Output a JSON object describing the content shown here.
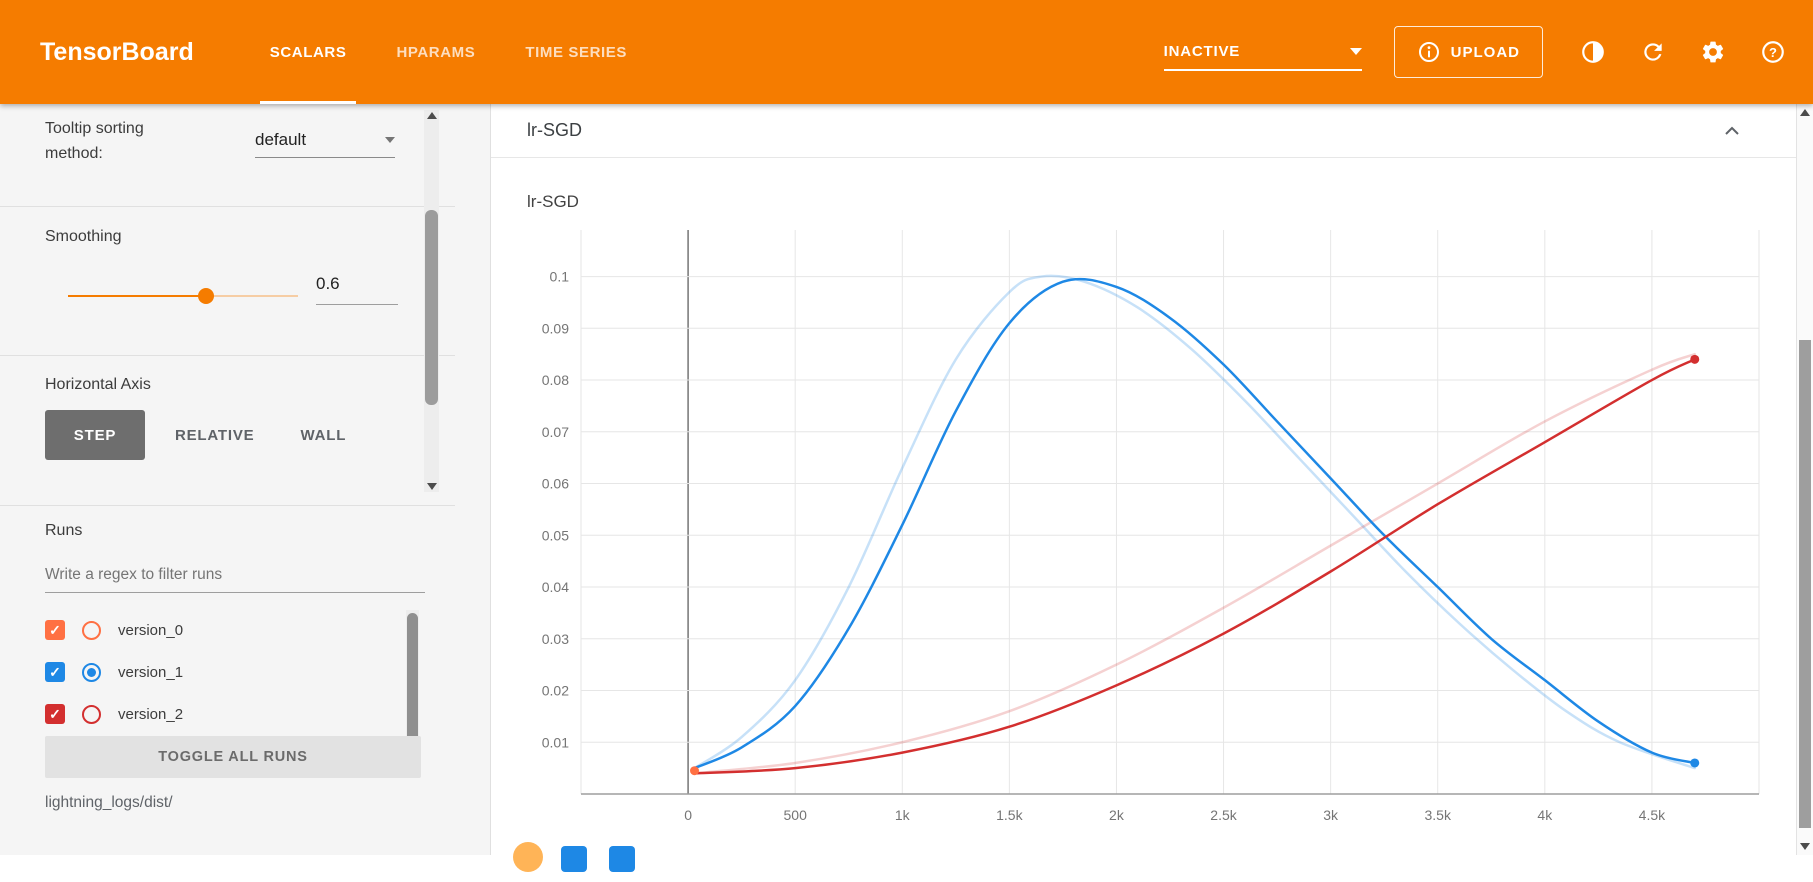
{
  "theme": {
    "header_bg": "#f57c00",
    "accent": "#f57c00",
    "step_active_bg": "#6e6e6e"
  },
  "header": {
    "logo": "TensorBoard",
    "tabs": [
      {
        "label": "SCALARS",
        "active": true
      },
      {
        "label": "HPARAMS",
        "active": false
      },
      {
        "label": "TIME SERIES",
        "active": false
      }
    ],
    "status_dropdown": {
      "value": "INACTIVE"
    },
    "upload_button": "UPLOAD",
    "icons": [
      "contrast-icon",
      "refresh-icon",
      "gear-icon",
      "help-icon"
    ]
  },
  "sidebar": {
    "tooltip_sorting_label": "Tooltip sorting method:",
    "tooltip_sorting_value": "default",
    "smoothing_label": "Smoothing",
    "smoothing_value": "0.6",
    "horizontal_axis_label": "Horizontal Axis",
    "axis_modes": [
      {
        "label": "STEP",
        "active": true
      },
      {
        "label": "RELATIVE",
        "active": false
      },
      {
        "label": "WALL",
        "active": false
      }
    ]
  },
  "runs": {
    "heading": "Runs",
    "filter_placeholder": "Write a regex to filter runs",
    "items": [
      {
        "label": "version_0",
        "color": "#ff7043",
        "checked": true,
        "selected": false
      },
      {
        "label": "version_1",
        "color": "#1e88e5",
        "checked": true,
        "selected": true
      },
      {
        "label": "version_2",
        "color": "#d32f2f",
        "checked": true,
        "selected": false
      }
    ],
    "toggle_all_label": "TOGGLE ALL RUNS",
    "logdir": "lightning_logs/dist/"
  },
  "main": {
    "section_title": "lr-SGD"
  },
  "chart_data": {
    "type": "line",
    "title": "lr-SGD",
    "xlim": [
      -500,
      5000
    ],
    "ylim": [
      0,
      0.109
    ],
    "x_ticks": [
      {
        "value": 0,
        "label": "0"
      },
      {
        "value": 500,
        "label": "500"
      },
      {
        "value": 1000,
        "label": "1k"
      },
      {
        "value": 1500,
        "label": "1.5k"
      },
      {
        "value": 2000,
        "label": "2k"
      },
      {
        "value": 2500,
        "label": "2.5k"
      },
      {
        "value": 3000,
        "label": "3k"
      },
      {
        "value": 3500,
        "label": "3.5k"
      },
      {
        "value": 4000,
        "label": "4k"
      },
      {
        "value": 4500,
        "label": "4.5k"
      }
    ],
    "y_ticks": [
      {
        "value": 0.01,
        "label": "0.01"
      },
      {
        "value": 0.02,
        "label": "0.02"
      },
      {
        "value": 0.03,
        "label": "0.03"
      },
      {
        "value": 0.04,
        "label": "0.04"
      },
      {
        "value": 0.05,
        "label": "0.05"
      },
      {
        "value": 0.06,
        "label": "0.06"
      },
      {
        "value": 0.07,
        "label": "0.07"
      },
      {
        "value": 0.08,
        "label": "0.08"
      },
      {
        "value": 0.09,
        "label": "0.09"
      },
      {
        "value": 0.1,
        "label": "0.1"
      }
    ],
    "series": [
      {
        "name": "version_1 (original)",
        "color": "#1e88e5",
        "opacity": 0.25,
        "width": 2.5,
        "end_dot": false,
        "points": [
          [
            30,
            0.005
          ],
          [
            250,
            0.011
          ],
          [
            500,
            0.022
          ],
          [
            750,
            0.04
          ],
          [
            1000,
            0.063
          ],
          [
            1250,
            0.084
          ],
          [
            1500,
            0.097
          ],
          [
            1650,
            0.1
          ],
          [
            1850,
            0.099
          ],
          [
            2100,
            0.094
          ],
          [
            2350,
            0.086
          ],
          [
            2600,
            0.076
          ],
          [
            2850,
            0.065
          ],
          [
            3100,
            0.054
          ],
          [
            3350,
            0.043
          ],
          [
            3600,
            0.033
          ],
          [
            3850,
            0.024
          ],
          [
            4100,
            0.016
          ],
          [
            4350,
            0.01
          ],
          [
            4700,
            0.005
          ]
        ]
      },
      {
        "name": "version_2 (original)",
        "color": "#d32f2f",
        "opacity": 0.22,
        "width": 2.5,
        "end_dot": false,
        "points": [
          [
            30,
            0.004
          ],
          [
            500,
            0.006
          ],
          [
            1000,
            0.01
          ],
          [
            1500,
            0.016
          ],
          [
            2000,
            0.025
          ],
          [
            2500,
            0.036
          ],
          [
            3000,
            0.048
          ],
          [
            3500,
            0.06
          ],
          [
            4000,
            0.072
          ],
          [
            4500,
            0.082
          ],
          [
            4700,
            0.085
          ]
        ]
      },
      {
        "name": "version_1 (smoothed)",
        "color": "#1e88e5",
        "opacity": 1,
        "width": 2.5,
        "end_dot": true,
        "points": [
          [
            30,
            0.005
          ],
          [
            250,
            0.009
          ],
          [
            500,
            0.017
          ],
          [
            750,
            0.032
          ],
          [
            1000,
            0.052
          ],
          [
            1250,
            0.074
          ],
          [
            1500,
            0.091
          ],
          [
            1750,
            0.099
          ],
          [
            2000,
            0.098
          ],
          [
            2250,
            0.092
          ],
          [
            2500,
            0.083
          ],
          [
            2750,
            0.072
          ],
          [
            3000,
            0.061
          ],
          [
            3250,
            0.05
          ],
          [
            3500,
            0.04
          ],
          [
            3750,
            0.03
          ],
          [
            4000,
            0.022
          ],
          [
            4250,
            0.014
          ],
          [
            4500,
            0.008
          ],
          [
            4700,
            0.006
          ]
        ]
      },
      {
        "name": "version_2 (smoothed)",
        "color": "#d32f2f",
        "opacity": 1,
        "width": 2.5,
        "end_dot": true,
        "points": [
          [
            30,
            0.004
          ],
          [
            500,
            0.005
          ],
          [
            1000,
            0.008
          ],
          [
            1500,
            0.013
          ],
          [
            2000,
            0.021
          ],
          [
            2500,
            0.031
          ],
          [
            3000,
            0.043
          ],
          [
            3500,
            0.056
          ],
          [
            4000,
            0.068
          ],
          [
            4500,
            0.08
          ],
          [
            4700,
            0.084
          ]
        ]
      },
      {
        "name": "version_0",
        "color": "#ff7043",
        "opacity": 1,
        "width": 0,
        "end_dot": true,
        "points": [
          [
            30,
            0.0045
          ]
        ]
      }
    ],
    "grid": true,
    "legend": "none"
  }
}
